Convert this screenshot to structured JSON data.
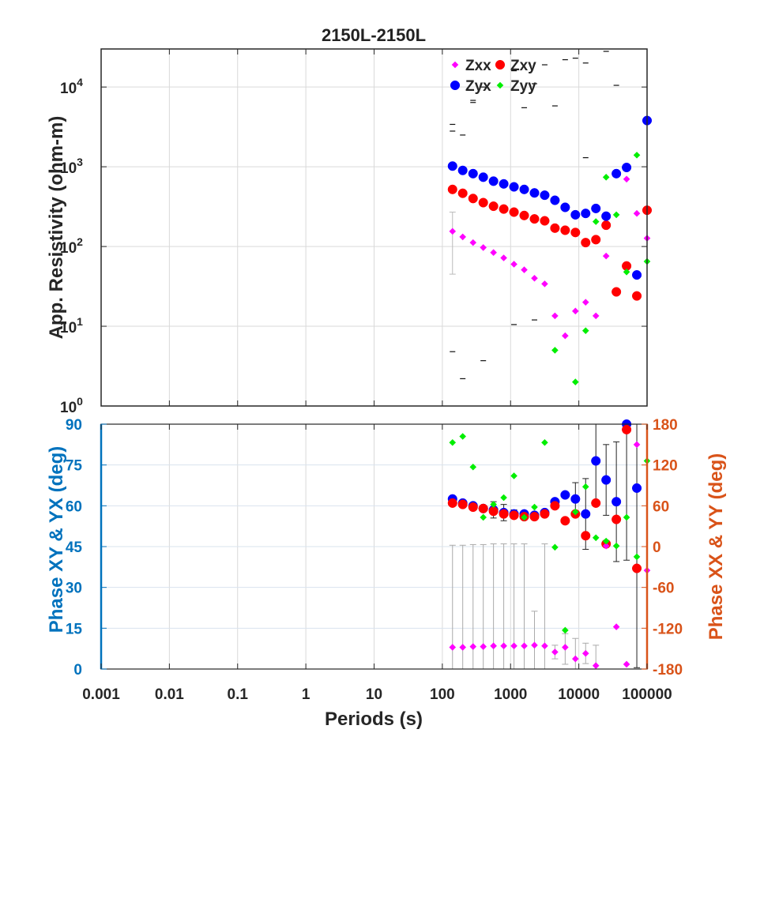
{
  "title": "2150L-2150L",
  "chart_data": [
    {
      "type": "scatter",
      "title": "2150L-2150L",
      "xlabel": "",
      "ylabel": "App. Resistivity (ohm-m)",
      "xscale": "log",
      "yscale": "log",
      "xlim": [
        0.001,
        100000
      ],
      "ylim": [
        1,
        30000
      ],
      "x_ticks": [
        0.001,
        0.01,
        0.1,
        1,
        10,
        100,
        1000,
        10000,
        100000
      ],
      "y_ticks": [
        1,
        10,
        100,
        1000,
        10000
      ],
      "y_tick_labels": [
        {
          "base": "10",
          "exp": "0"
        },
        {
          "base": "10",
          "exp": "1"
        },
        {
          "base": "10",
          "exp": "2"
        },
        {
          "base": "10",
          "exp": "3"
        },
        {
          "base": "10",
          "exp": "4"
        }
      ],
      "grid": true,
      "legend": "top-right",
      "legend_entries": [
        "Zxx",
        "Zxy",
        "Zyx",
        "Zyy"
      ],
      "series": [
        {
          "name": "Zxx",
          "color": "#ff00ff",
          "marker": "diamond",
          "x": [
            141,
            199,
            282,
            398,
            562,
            794,
            1122,
            1585,
            2239,
            3162,
            4467,
            6310,
            8913,
            12589,
            17783,
            25119,
            35481,
            50119,
            70795,
            100000
          ],
          "y": [
            155,
            132,
            112,
            97,
            84,
            72,
            60,
            51,
            40,
            34,
            13.5,
            7.6,
            15.5,
            20,
            13.5,
            76,
            0,
            700,
            260,
            127
          ],
          "err_low": [
            45,
            0,
            0,
            0,
            0,
            0,
            0,
            0,
            0,
            0,
            0,
            0,
            0,
            0,
            0,
            0,
            0,
            0,
            0,
            0
          ],
          "err_high": [
            270,
            0,
            0,
            0,
            0,
            0,
            0,
            0,
            0,
            0,
            0,
            0,
            0,
            0,
            0,
            0,
            0,
            0,
            0,
            0
          ]
        },
        {
          "name": "Zxy",
          "color": "#ff0000",
          "marker": "circle",
          "x": [
            141,
            199,
            282,
            398,
            562,
            794,
            1122,
            1585,
            2239,
            3162,
            4467,
            6310,
            8913,
            12589,
            17783,
            25119,
            35481,
            50119,
            70795,
            100000
          ],
          "y": [
            520,
            465,
            400,
            355,
            320,
            295,
            270,
            245,
            222,
            210,
            170,
            160,
            150,
            112,
            122,
            185,
            27,
            57,
            24,
            285
          ],
          "err_low": [],
          "err_high": []
        },
        {
          "name": "Zyx",
          "color": "#0000ff",
          "marker": "circle",
          "x": [
            141,
            199,
            282,
            398,
            562,
            794,
            1122,
            1585,
            2239,
            3162,
            4467,
            6310,
            8913,
            12589,
            17783,
            25119,
            35481,
            50119,
            70795,
            100000
          ],
          "y": [
            1020,
            900,
            820,
            740,
            660,
            610,
            560,
            520,
            470,
            440,
            380,
            310,
            250,
            260,
            300,
            240,
            820,
            980,
            44,
            3800
          ],
          "err_low": [],
          "err_high": []
        },
        {
          "name": "Zyy",
          "color": "#00ee00",
          "marker": "diamond",
          "x": [
            4467,
            8913,
            12589,
            17783,
            25119,
            35481,
            50119,
            70795,
            100000
          ],
          "y": [
            5,
            2,
            8.8,
            205,
            740,
            250,
            48,
            1400,
            65
          ],
          "err_low": [],
          "err_high": []
        }
      ],
      "error_ticks": [
        [
          141,
          3400
        ],
        [
          141,
          2800
        ],
        [
          199,
          2500
        ],
        [
          282,
          6800
        ],
        [
          282,
          6400
        ],
        [
          398,
          10000
        ],
        [
          1122,
          16000
        ],
        [
          1585,
          5500
        ],
        [
          2239,
          11000
        ],
        [
          3162,
          19000
        ],
        [
          4467,
          5800
        ],
        [
          6310,
          22000
        ],
        [
          8913,
          23000
        ],
        [
          12589,
          20000
        ],
        [
          25119,
          28000
        ],
        [
          35481,
          10500
        ],
        [
          12589,
          1300
        ],
        [
          141,
          4.8
        ],
        [
          199,
          2.2
        ],
        [
          398,
          3.7
        ],
        [
          1122,
          10.5
        ],
        [
          2239,
          12
        ]
      ]
    },
    {
      "type": "scatter",
      "title": "",
      "xlabel": "Periods (s)",
      "ylabel": "Phase XY & YX (deg)",
      "ylabel_right": "Phase XX & YY (deg)",
      "xscale": "log",
      "xlim": [
        0.001,
        100000
      ],
      "ylim": [
        0,
        90
      ],
      "ylim_right": [
        -180,
        180
      ],
      "x_ticks": [
        0.001,
        0.01,
        0.1,
        1,
        10,
        100,
        1000,
        10000,
        100000
      ],
      "x_tick_labels": [
        "0.001",
        "0.01",
        "0.1",
        "1",
        "10",
        "100",
        "1000",
        "10000",
        "100000"
      ],
      "y_ticks": [
        0,
        15,
        30,
        45,
        60,
        75,
        90
      ],
      "y_ticks_right": [
        -180,
        -120,
        -60,
        0,
        60,
        120,
        180
      ],
      "left_axis_color": "#0072bd",
      "right_axis_color": "#d95319",
      "grid": true,
      "series": [
        {
          "name": "Zyx",
          "axis": "left",
          "color": "#0000ff",
          "marker": "circle",
          "x": [
            141,
            199,
            282,
            398,
            562,
            794,
            1122,
            1585,
            2239,
            3162,
            4467,
            6310,
            8913,
            12589,
            17783,
            25119,
            35481,
            50119,
            70795
          ],
          "y": [
            62.5,
            61,
            60,
            59,
            58.5,
            57.5,
            57,
            57,
            56.5,
            57.5,
            61.5,
            64,
            62.5,
            57,
            76.5,
            69.5,
            61.5,
            90,
            66.5
          ],
          "err_low": [
            1,
            1,
            1,
            1,
            3,
            3,
            1.5,
            1,
            1,
            1,
            1,
            1,
            6,
            13,
            15,
            13,
            22,
            50,
            66
          ],
          "err_high": [
            1,
            1,
            1,
            1,
            3,
            3,
            1.5,
            1,
            1,
            1,
            1,
            1,
            6,
            13,
            15,
            13,
            22,
            50,
            66
          ]
        },
        {
          "name": "Zxy",
          "axis": "left",
          "color": "#ff0000",
          "marker": "circle",
          "x": [
            141,
            199,
            282,
            398,
            562,
            794,
            1122,
            1585,
            2239,
            3162,
            4467,
            6310,
            8913,
            12589,
            17783,
            25119,
            35481,
            50119,
            70795
          ],
          "y": [
            61,
            60.5,
            59.5,
            59,
            58,
            57,
            56.5,
            56,
            56,
            57,
            60,
            54.5,
            57,
            49,
            61,
            46,
            55,
            88,
            37
          ],
          "err_low": [],
          "err_high": []
        },
        {
          "name": "Zxx",
          "axis": "right",
          "color": "#ff00ff",
          "marker": "diamond",
          "x": [
            141,
            199,
            282,
            398,
            562,
            794,
            1122,
            1585,
            2239,
            3162,
            4467,
            6310,
            8913,
            12589,
            17783,
            25119,
            35481,
            50119,
            70795,
            100000
          ],
          "y": [
            -148,
            -148,
            -147,
            -147,
            -146,
            -146,
            -146,
            -146,
            -145,
            -146,
            -155,
            -148,
            -165,
            -157,
            -175,
            1,
            -118,
            -173,
            150,
            -35
          ],
          "err_low": [
            150,
            150,
            150,
            150,
            150,
            150,
            150,
            150,
            50,
            150,
            10,
            25,
            30,
            15,
            30,
            1,
            1,
            1,
            1,
            1
          ],
          "err_high": [
            150,
            150,
            150,
            150,
            150,
            150,
            150,
            150,
            50,
            150,
            10,
            20,
            30,
            15,
            30,
            1,
            1,
            1,
            1,
            1
          ]
        },
        {
          "name": "Zyy",
          "axis": "right",
          "color": "#00ee00",
          "marker": "diamond",
          "x": [
            141,
            199,
            282,
            398,
            562,
            794,
            1122,
            1585,
            2239,
            3162,
            4467,
            6310,
            8913,
            12589,
            17783,
            25119,
            35481,
            50119,
            70795,
            100000
          ],
          "y": [
            153,
            162,
            117,
            43,
            62,
            72,
            104,
            43,
            58,
            153,
            -1,
            -123,
            51,
            88,
            13,
            8,
            1,
            43,
            -15,
            126
          ],
          "err_low": [],
          "err_high": []
        }
      ]
    }
  ]
}
